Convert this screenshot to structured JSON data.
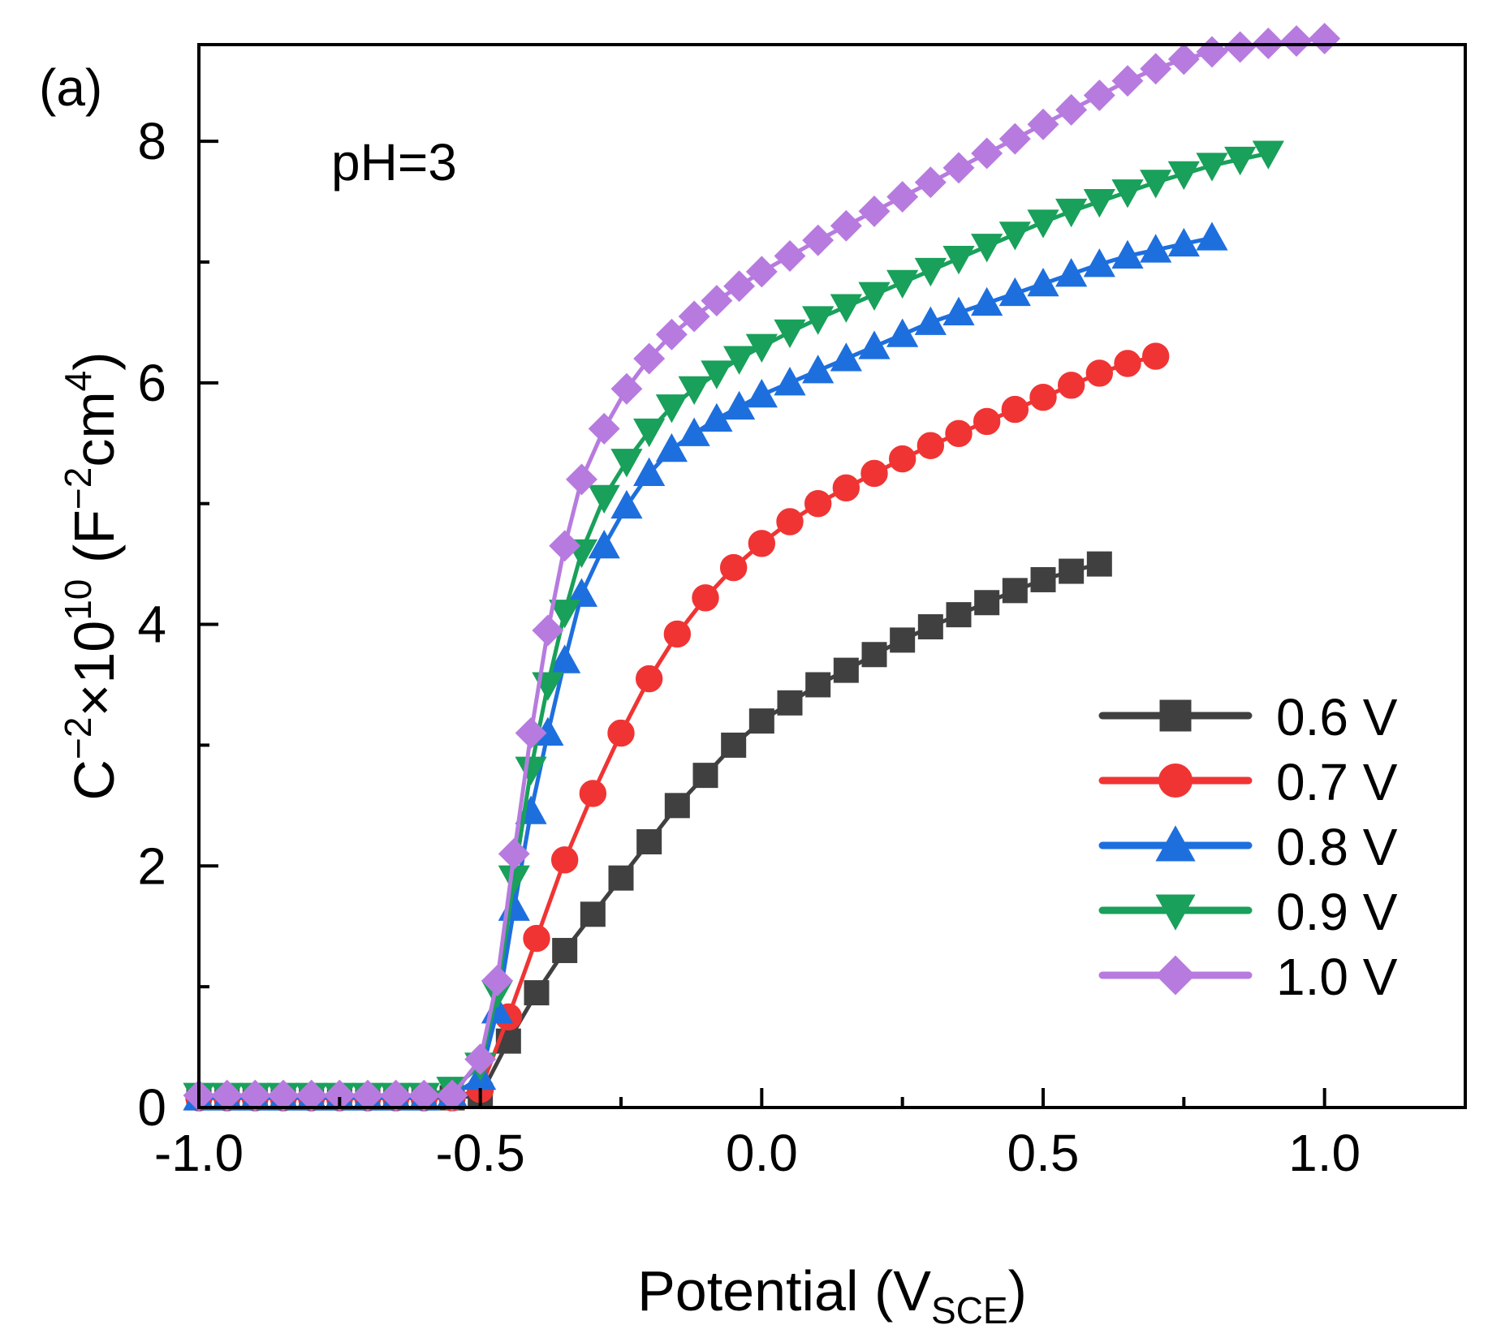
{
  "chart_data": {
    "type": "line",
    "panel_label": "(a)",
    "annotation": "pH=3",
    "xlabel": {
      "main": "Potential (V",
      "sub": "SCE",
      "close": ")"
    },
    "ylabel": {
      "c": "C",
      "sup1": "−2",
      "times": "×10",
      "sup2": "10",
      "open": " (F",
      "sup3": "−2",
      "cm": "cm",
      "sup4": "4",
      "close": ")"
    },
    "xlim": [
      -1.0,
      1.25
    ],
    "ylim": [
      0,
      8.8
    ],
    "xticks": [
      -1.0,
      -0.5,
      0.0,
      0.5,
      1.0
    ],
    "xtick_labels": [
      "-1.0",
      "-0.5",
      "0.0",
      "0.5",
      "1.0"
    ],
    "yticks": [
      0,
      2,
      4,
      6,
      8
    ],
    "ytick_labels": [
      "0",
      "2",
      "4",
      "6",
      "8"
    ],
    "grid": false,
    "legend_position": "bottom-right",
    "series": [
      {
        "name": "0.6 V",
        "color": "#404040",
        "marker": "square",
        "x": [
          -1.0,
          -0.95,
          -0.9,
          -0.85,
          -0.8,
          -0.75,
          -0.7,
          -0.65,
          -0.6,
          -0.55,
          -0.5,
          -0.45,
          -0.4,
          -0.35,
          -0.3,
          -0.25,
          -0.2,
          -0.15,
          -0.1,
          -0.05,
          0.0,
          0.05,
          0.1,
          0.15,
          0.2,
          0.25,
          0.3,
          0.35,
          0.4,
          0.45,
          0.5,
          0.55,
          0.6
        ],
        "y": [
          0.08,
          0.08,
          0.08,
          0.08,
          0.08,
          0.08,
          0.08,
          0.08,
          0.08,
          0.08,
          0.1,
          0.55,
          0.95,
          1.3,
          1.6,
          1.9,
          2.2,
          2.5,
          2.75,
          3.0,
          3.2,
          3.35,
          3.5,
          3.62,
          3.75,
          3.87,
          3.98,
          4.08,
          4.18,
          4.28,
          4.37,
          4.44,
          4.5
        ]
      },
      {
        "name": "0.7 V",
        "color": "#f03434",
        "marker": "circle",
        "x": [
          -1.0,
          -0.95,
          -0.9,
          -0.85,
          -0.8,
          -0.75,
          -0.7,
          -0.65,
          -0.6,
          -0.55,
          -0.5,
          -0.45,
          -0.4,
          -0.35,
          -0.3,
          -0.25,
          -0.2,
          -0.15,
          -0.1,
          -0.05,
          0.0,
          0.05,
          0.1,
          0.15,
          0.2,
          0.25,
          0.3,
          0.35,
          0.4,
          0.45,
          0.5,
          0.55,
          0.6,
          0.65,
          0.7
        ],
        "y": [
          0.08,
          0.08,
          0.08,
          0.08,
          0.08,
          0.08,
          0.08,
          0.08,
          0.08,
          0.08,
          0.15,
          0.75,
          1.4,
          2.05,
          2.6,
          3.1,
          3.55,
          3.92,
          4.22,
          4.47,
          4.67,
          4.85,
          5.0,
          5.13,
          5.25,
          5.37,
          5.48,
          5.58,
          5.68,
          5.78,
          5.88,
          5.98,
          6.08,
          6.16,
          6.22
        ]
      },
      {
        "name": "0.8 V",
        "color": "#1e6fde",
        "marker": "triangle-up",
        "x": [
          -1.0,
          -0.95,
          -0.9,
          -0.85,
          -0.8,
          -0.75,
          -0.7,
          -0.65,
          -0.6,
          -0.55,
          -0.5,
          -0.47,
          -0.44,
          -0.41,
          -0.38,
          -0.35,
          -0.32,
          -0.28,
          -0.24,
          -0.2,
          -0.16,
          -0.12,
          -0.08,
          -0.04,
          0.0,
          0.05,
          0.1,
          0.15,
          0.2,
          0.25,
          0.3,
          0.35,
          0.4,
          0.45,
          0.5,
          0.55,
          0.6,
          0.65,
          0.7,
          0.75,
          0.8
        ],
        "y": [
          0.08,
          0.08,
          0.08,
          0.08,
          0.08,
          0.08,
          0.08,
          0.08,
          0.08,
          0.1,
          0.25,
          0.8,
          1.65,
          2.45,
          3.1,
          3.7,
          4.25,
          4.65,
          4.98,
          5.25,
          5.45,
          5.58,
          5.7,
          5.8,
          5.9,
          6.0,
          6.1,
          6.2,
          6.3,
          6.4,
          6.5,
          6.58,
          6.66,
          6.74,
          6.82,
          6.9,
          6.98,
          7.05,
          7.1,
          7.15,
          7.2
        ]
      },
      {
        "name": "0.9 V",
        "color": "#19a05a",
        "marker": "triangle-down",
        "x": [
          -1.0,
          -0.95,
          -0.9,
          -0.85,
          -0.8,
          -0.75,
          -0.7,
          -0.65,
          -0.6,
          -0.55,
          -0.5,
          -0.47,
          -0.44,
          -0.41,
          -0.38,
          -0.35,
          -0.32,
          -0.28,
          -0.24,
          -0.2,
          -0.16,
          -0.12,
          -0.08,
          -0.04,
          0.0,
          0.05,
          0.1,
          0.15,
          0.2,
          0.25,
          0.3,
          0.35,
          0.4,
          0.45,
          0.5,
          0.55,
          0.6,
          0.65,
          0.7,
          0.75,
          0.8,
          0.85,
          0.9
        ],
        "y": [
          0.1,
          0.1,
          0.1,
          0.1,
          0.1,
          0.1,
          0.1,
          0.1,
          0.1,
          0.15,
          0.35,
          0.95,
          1.9,
          2.8,
          3.5,
          4.1,
          4.6,
          5.05,
          5.35,
          5.6,
          5.8,
          5.95,
          6.08,
          6.2,
          6.3,
          6.42,
          6.53,
          6.63,
          6.73,
          6.83,
          6.93,
          7.03,
          7.13,
          7.23,
          7.33,
          7.42,
          7.5,
          7.58,
          7.66,
          7.73,
          7.8,
          7.85,
          7.9
        ]
      },
      {
        "name": "1.0 V",
        "color": "#b77bdf",
        "marker": "diamond",
        "x": [
          -1.0,
          -0.95,
          -0.9,
          -0.85,
          -0.8,
          -0.75,
          -0.7,
          -0.65,
          -0.6,
          -0.55,
          -0.5,
          -0.47,
          -0.44,
          -0.41,
          -0.38,
          -0.35,
          -0.32,
          -0.28,
          -0.24,
          -0.2,
          -0.16,
          -0.12,
          -0.08,
          -0.04,
          0.0,
          0.05,
          0.1,
          0.15,
          0.2,
          0.25,
          0.3,
          0.35,
          0.4,
          0.45,
          0.5,
          0.55,
          0.6,
          0.65,
          0.7,
          0.75,
          0.8,
          0.85,
          0.9,
          0.95,
          1.0
        ],
        "y": [
          0.1,
          0.1,
          0.1,
          0.1,
          0.1,
          0.1,
          0.1,
          0.1,
          0.1,
          0.1,
          0.4,
          1.05,
          2.1,
          3.1,
          3.95,
          4.65,
          5.2,
          5.62,
          5.95,
          6.2,
          6.4,
          6.55,
          6.68,
          6.8,
          6.92,
          7.05,
          7.18,
          7.3,
          7.42,
          7.54,
          7.66,
          7.78,
          7.9,
          8.02,
          8.14,
          8.26,
          8.38,
          8.5,
          8.6,
          8.68,
          8.74,
          8.78,
          8.81,
          8.83,
          8.85
        ]
      }
    ]
  }
}
